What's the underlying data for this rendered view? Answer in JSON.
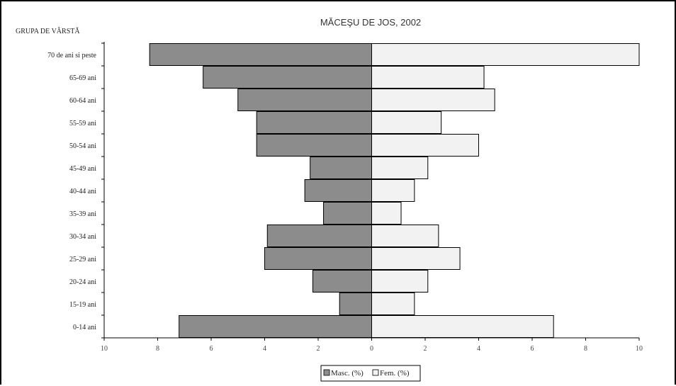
{
  "chart_data": {
    "type": "bar",
    "orientation": "horizontal",
    "layout": "population-pyramid",
    "title": "MĂCEŞU DE JOS, 2002",
    "ylabel": "GRUPA DE VÂRSTĂ",
    "xlabel": "",
    "xlim": [
      -10,
      10
    ],
    "x_ticks": [
      "10",
      "8",
      "6",
      "4",
      "2",
      "0",
      "2",
      "4",
      "6",
      "8",
      "10"
    ],
    "categories": [
      "70 de ani si peste",
      "65-69 ani",
      "60-64 ani",
      "55-59 ani",
      "50-54 ani",
      "45-49 ani",
      "40-44 ani",
      "35-39 ani",
      "30-34 ani",
      "25-29 ani",
      "20-24 ani",
      "15-19 ani",
      "0-14 ani"
    ],
    "series": [
      {
        "name": "Masc. (%)",
        "side": "left",
        "color": "#8c8c8c",
        "values": [
          8.3,
          6.3,
          5.0,
          4.3,
          4.3,
          2.3,
          2.5,
          1.8,
          3.9,
          4.0,
          2.2,
          1.2,
          7.2
        ]
      },
      {
        "name": "Fem. (%)",
        "side": "right",
        "color": "#f2f2f2",
        "values": [
          10.0,
          4.2,
          4.6,
          2.6,
          4.0,
          2.1,
          1.6,
          1.1,
          2.5,
          3.3,
          2.1,
          1.6,
          6.8
        ]
      }
    ],
    "legend": {
      "position": "bottom-center"
    },
    "grid": false
  }
}
